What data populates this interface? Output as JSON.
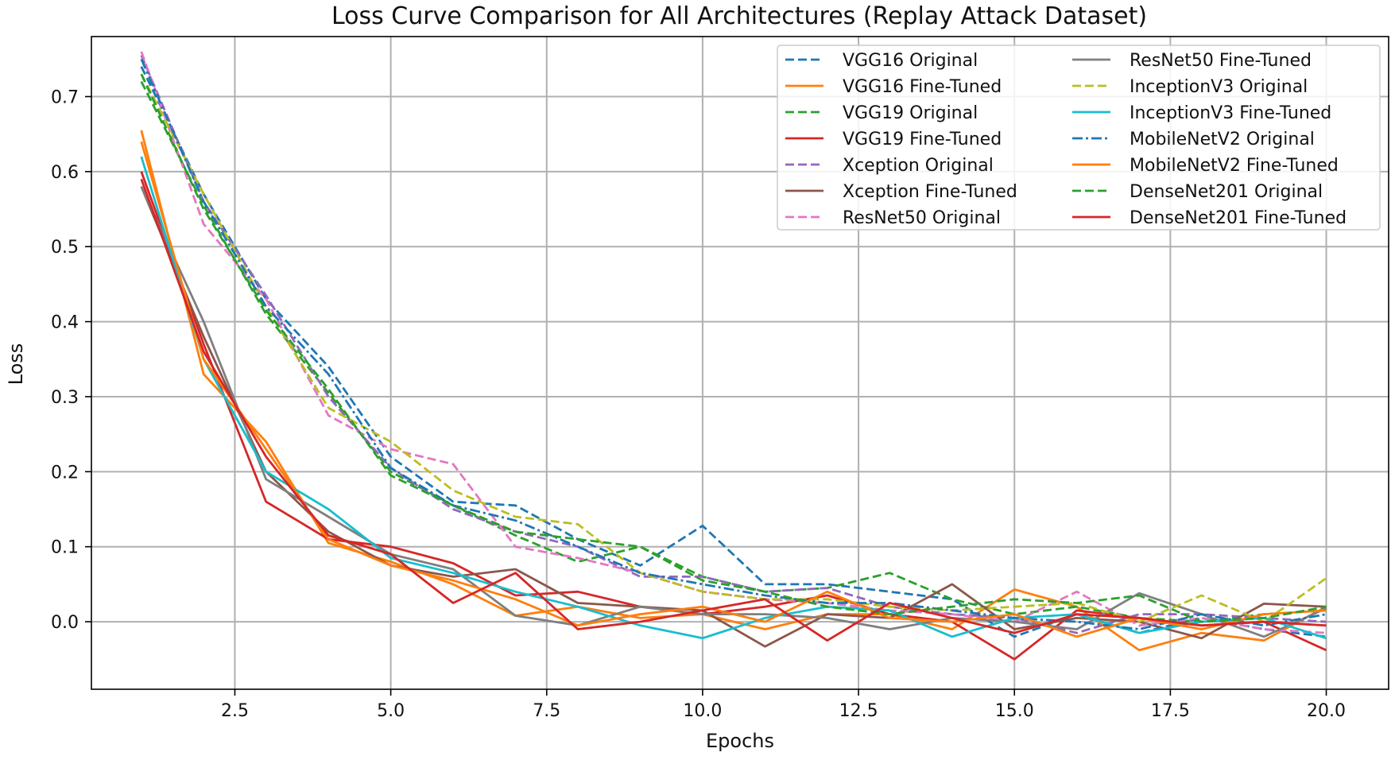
{
  "chart_data": {
    "type": "line",
    "title": "Loss Curve Comparison for All Architectures (Replay Attack Dataset)",
    "xlabel": "Epochs",
    "ylabel": "Loss",
    "xlim": [
      0.2,
      21.0
    ],
    "ylim": [
      -0.09,
      0.78
    ],
    "xticks": [
      2.5,
      5.0,
      7.5,
      10.0,
      12.5,
      15.0,
      17.5,
      20.0
    ],
    "xtick_labels": [
      "2.5",
      "5.0",
      "7.5",
      "10.0",
      "12.5",
      "15.0",
      "17.5",
      "20.0"
    ],
    "yticks": [
      0.0,
      0.1,
      0.2,
      0.3,
      0.4,
      0.5,
      0.6,
      0.7
    ],
    "ytick_labels": [
      "0.0",
      "0.1",
      "0.2",
      "0.3",
      "0.4",
      "0.5",
      "0.6",
      "0.7"
    ],
    "grid": true,
    "legend_position": "top-right",
    "legend_columns": 2,
    "x": [
      1,
      2,
      3,
      4,
      5,
      6,
      7,
      8,
      9,
      10,
      11,
      12,
      13,
      14,
      15,
      16,
      17,
      18,
      19,
      20
    ],
    "series": [
      {
        "name": "VGG16 Original",
        "color": "#1f77b4",
        "dash": "dashed",
        "values": [
          0.74,
          0.57,
          0.43,
          0.34,
          0.22,
          0.16,
          0.155,
          0.11,
          0.075,
          0.128,
          0.05,
          0.05,
          0.04,
          0.03,
          -0.02,
          0.01,
          -0.015,
          0.005,
          -0.01,
          -0.02
        ]
      },
      {
        "name": "VGG16 Fine-Tuned",
        "color": "#ff7f0e",
        "dash": "solid",
        "values": [
          0.655,
          0.33,
          0.24,
          0.105,
          0.08,
          0.05,
          0.008,
          0.02,
          0.005,
          0.01,
          -0.01,
          0.01,
          0.01,
          -0.01,
          0.043,
          0.02,
          -0.038,
          -0.015,
          -0.025,
          0.02
        ]
      },
      {
        "name": "VGG19 Original",
        "color": "#2ca02c",
        "dash": "dashed",
        "values": [
          0.72,
          0.555,
          0.41,
          0.305,
          0.2,
          0.155,
          0.115,
          0.08,
          0.1,
          0.06,
          0.04,
          0.045,
          0.065,
          0.03,
          0.01,
          0.02,
          0.005,
          0.0,
          0.01,
          0.015
        ]
      },
      {
        "name": "VGG19 Fine-Tuned",
        "color": "#d62728",
        "dash": "solid",
        "values": [
          0.6,
          0.37,
          0.16,
          0.11,
          0.1,
          0.078,
          0.035,
          0.04,
          0.02,
          0.01,
          0.02,
          0.035,
          0.01,
          0.0,
          -0.05,
          0.015,
          0.005,
          -0.005,
          0.0,
          -0.038
        ]
      },
      {
        "name": "Xception Original",
        "color": "#9467bd",
        "dash": "dashed",
        "values": [
          0.755,
          0.56,
          0.435,
          0.3,
          0.205,
          0.15,
          0.12,
          0.1,
          0.06,
          0.06,
          0.04,
          0.045,
          0.02,
          0.01,
          0.005,
          -0.015,
          0.01,
          0.01,
          0.005,
          0.0
        ]
      },
      {
        "name": "Xception Fine-Tuned",
        "color": "#8c564b",
        "dash": "solid",
        "values": [
          0.58,
          0.38,
          0.2,
          0.12,
          0.075,
          0.06,
          0.07,
          0.025,
          0.02,
          0.015,
          -0.033,
          0.01,
          0.005,
          0.05,
          -0.01,
          0.005,
          0.0,
          -0.022,
          0.024,
          0.02
        ]
      },
      {
        "name": "ResNet50 Original",
        "color": "#e377c2",
        "dash": "dashed",
        "values": [
          0.76,
          0.53,
          0.43,
          0.275,
          0.23,
          0.21,
          0.1,
          0.085,
          0.065,
          0.04,
          0.03,
          0.025,
          0.015,
          0.01,
          0.0,
          0.04,
          -0.005,
          0.005,
          -0.01,
          -0.015
        ]
      },
      {
        "name": "ResNet50 Fine-Tuned",
        "color": "#7f7f7f",
        "dash": "solid",
        "values": [
          0.58,
          0.4,
          0.19,
          0.14,
          0.09,
          0.07,
          0.008,
          -0.005,
          0.02,
          0.01,
          0.01,
          0.005,
          -0.01,
          0.005,
          0.0,
          -0.01,
          0.038,
          0.01,
          -0.02,
          0.018
        ]
      },
      {
        "name": "InceptionV3 Original",
        "color": "#bcbd22",
        "dash": "dashed",
        "values": [
          0.73,
          0.57,
          0.42,
          0.285,
          0.24,
          0.175,
          0.14,
          0.13,
          0.065,
          0.04,
          0.03,
          0.03,
          0.02,
          0.015,
          0.02,
          0.025,
          0.0,
          0.035,
          0.0,
          0.058
        ]
      },
      {
        "name": "InceptionV3 Fine-Tuned",
        "color": "#17becf",
        "dash": "solid",
        "values": [
          0.62,
          0.35,
          0.2,
          0.15,
          0.085,
          0.065,
          0.04,
          0.02,
          -0.005,
          -0.022,
          0.005,
          0.02,
          0.015,
          -0.02,
          0.005,
          0.01,
          -0.015,
          0.0,
          0.005,
          -0.022
        ]
      },
      {
        "name": "MobileNetV2 Original",
        "color": "#1f77b4",
        "dash": "dashdot",
        "values": [
          0.75,
          0.56,
          0.42,
          0.33,
          0.205,
          0.155,
          0.135,
          0.1,
          0.065,
          0.05,
          0.035,
          0.025,
          0.025,
          0.015,
          0.005,
          0.0,
          -0.01,
          0.01,
          -0.005,
          0.01
        ]
      },
      {
        "name": "MobileNetV2 Fine-Tuned",
        "color": "#ff7f0e",
        "dash": "solid",
        "values": [
          0.64,
          0.35,
          0.23,
          0.11,
          0.075,
          0.055,
          0.03,
          -0.005,
          0.01,
          0.02,
          0.0,
          0.04,
          0.005,
          0.0,
          0.01,
          -0.02,
          0.005,
          -0.01,
          0.01,
          0.015
        ]
      },
      {
        "name": "DenseNet201 Original",
        "color": "#2ca02c",
        "dash": "dashed",
        "values": [
          0.73,
          0.55,
          0.415,
          0.31,
          0.195,
          0.155,
          0.12,
          0.11,
          0.1,
          0.055,
          0.04,
          0.02,
          0.01,
          0.02,
          0.03,
          0.025,
          0.035,
          0.0,
          0.005,
          0.02
        ]
      },
      {
        "name": "DenseNet201 Fine-Tuned",
        "color": "#d62728",
        "dash": "solid",
        "values": [
          0.59,
          0.36,
          0.22,
          0.115,
          0.09,
          0.025,
          0.065,
          -0.01,
          0.0,
          0.015,
          0.03,
          -0.025,
          0.025,
          0.005,
          -0.015,
          0.01,
          0.005,
          -0.005,
          0.0,
          -0.005
        ]
      }
    ]
  }
}
